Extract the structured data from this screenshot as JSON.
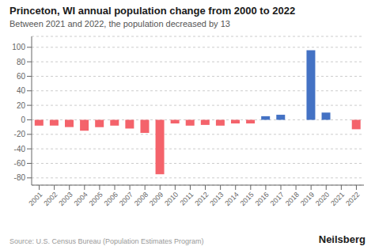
{
  "chart_data": {
    "type": "bar",
    "title": "Princeton, WI annual population change from 2000 to 2022",
    "subtitle": "Between 2021 and 2022, the population decreased by 13",
    "annotations": [
      "Source: U.S. Census Bureau (Population Estimates Program)",
      "Neilsberg"
    ],
    "categories": [
      "2001",
      "2002",
      "2003",
      "2004",
      "2005",
      "2006",
      "2007",
      "2008",
      "2009",
      "2010",
      "2011",
      "2012",
      "2013",
      "2014",
      "2015",
      "2016",
      "2017",
      "2018",
      "2019",
      "2020",
      "2021",
      "2022"
    ],
    "values": [
      -8,
      -8,
      -10,
      -15,
      -10,
      -8,
      -12,
      -18,
      -75,
      -5,
      -8,
      -7,
      -8,
      -5,
      -5,
      5,
      7,
      0,
      96,
      10,
      0,
      -13
    ],
    "colors": [
      "#F4636B",
      "#F4636B",
      "#F4636B",
      "#F4636B",
      "#F4636B",
      "#F4636B",
      "#F4636B",
      "#F4636B",
      "#F4636B",
      "#F4636B",
      "#F4636B",
      "#F4636B",
      "#F4636B",
      "#F4636B",
      "#F4636B",
      "#4472C4",
      "#4472C4",
      "#4472C4",
      "#4472C4",
      "#4472C4",
      "#4472C4",
      "#F4636B"
    ],
    "ylim": [
      -90,
      115
    ],
    "yticks": [
      -80,
      -60,
      -40,
      -20,
      0,
      20,
      40,
      60,
      80,
      100
    ],
    "grid": true
  }
}
